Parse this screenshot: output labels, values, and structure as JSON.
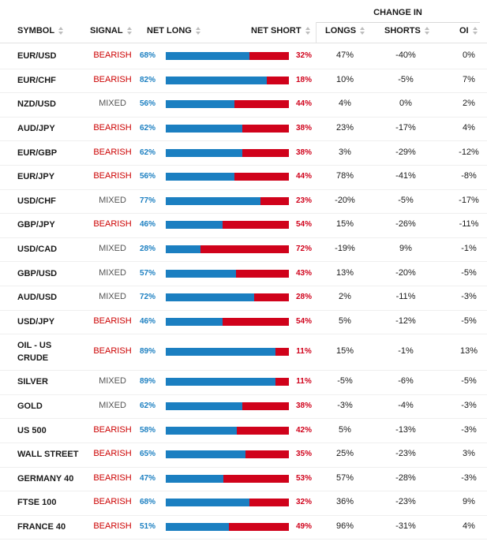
{
  "header": {
    "change_in": "CHANGE IN",
    "symbol": "SYMBOL",
    "signal": "SIGNAL",
    "net_long": "NET LONG",
    "net_short": "NET SHORT",
    "longs": "LONGS",
    "shorts": "SHORTS",
    "oi": "OI"
  },
  "colors": {
    "long": "#1b7fc1",
    "short": "#d0021b",
    "bearish": "#cc0000",
    "mixed": "#555555"
  },
  "rows": [
    {
      "symbol": "EUR/USD",
      "signal": "BEARISH",
      "net_long": "68%",
      "net_short": "32%",
      "longs": "47%",
      "shorts": "-40%",
      "oi": "0%",
      "long_pct": 68
    },
    {
      "symbol": "EUR/CHF",
      "signal": "BEARISH",
      "net_long": "82%",
      "net_short": "18%",
      "longs": "10%",
      "shorts": "-5%",
      "oi": "7%",
      "long_pct": 82
    },
    {
      "symbol": "NZD/USD",
      "signal": "MIXED",
      "net_long": "56%",
      "net_short": "44%",
      "longs": "4%",
      "shorts": "0%",
      "oi": "2%",
      "long_pct": 56
    },
    {
      "symbol": "AUD/JPY",
      "signal": "BEARISH",
      "net_long": "62%",
      "net_short": "38%",
      "longs": "23%",
      "shorts": "-17%",
      "oi": "4%",
      "long_pct": 62
    },
    {
      "symbol": "EUR/GBP",
      "signal": "BEARISH",
      "net_long": "62%",
      "net_short": "38%",
      "longs": "3%",
      "shorts": "-29%",
      "oi": "-12%",
      "long_pct": 62
    },
    {
      "symbol": "EUR/JPY",
      "signal": "BEARISH",
      "net_long": "56%",
      "net_short": "44%",
      "longs": "78%",
      "shorts": "-41%",
      "oi": "-8%",
      "long_pct": 56
    },
    {
      "symbol": "USD/CHF",
      "signal": "MIXED",
      "net_long": "77%",
      "net_short": "23%",
      "longs": "-20%",
      "shorts": "-5%",
      "oi": "-17%",
      "long_pct": 77
    },
    {
      "symbol": "GBP/JPY",
      "signal": "BEARISH",
      "net_long": "46%",
      "net_short": "54%",
      "longs": "15%",
      "shorts": "-26%",
      "oi": "-11%",
      "long_pct": 46
    },
    {
      "symbol": "USD/CAD",
      "signal": "MIXED",
      "net_long": "28%",
      "net_short": "72%",
      "longs": "-19%",
      "shorts": "9%",
      "oi": "-1%",
      "long_pct": 28
    },
    {
      "symbol": "GBP/USD",
      "signal": "MIXED",
      "net_long": "57%",
      "net_short": "43%",
      "longs": "13%",
      "shorts": "-20%",
      "oi": "-5%",
      "long_pct": 57
    },
    {
      "symbol": "AUD/USD",
      "signal": "MIXED",
      "net_long": "72%",
      "net_short": "28%",
      "longs": "2%",
      "shorts": "-11%",
      "oi": "-3%",
      "long_pct": 72
    },
    {
      "symbol": "USD/JPY",
      "signal": "BEARISH",
      "net_long": "46%",
      "net_short": "54%",
      "longs": "5%",
      "shorts": "-12%",
      "oi": "-5%",
      "long_pct": 46
    },
    {
      "symbol": "OIL - US CRUDE",
      "signal": "BEARISH",
      "net_long": "89%",
      "net_short": "11%",
      "longs": "15%",
      "shorts": "-1%",
      "oi": "13%",
      "long_pct": 89
    },
    {
      "symbol": "SILVER",
      "signal": "MIXED",
      "net_long": "89%",
      "net_short": "11%",
      "longs": "-5%",
      "shorts": "-6%",
      "oi": "-5%",
      "long_pct": 89
    },
    {
      "symbol": "GOLD",
      "signal": "MIXED",
      "net_long": "62%",
      "net_short": "38%",
      "longs": "-3%",
      "shorts": "-4%",
      "oi": "-3%",
      "long_pct": 62
    },
    {
      "symbol": "US 500",
      "signal": "BEARISH",
      "net_long": "58%",
      "net_short": "42%",
      "longs": "5%",
      "shorts": "-13%",
      "oi": "-3%",
      "long_pct": 58
    },
    {
      "symbol": "WALL STREET",
      "signal": "BEARISH",
      "net_long": "65%",
      "net_short": "35%",
      "longs": "25%",
      "shorts": "-23%",
      "oi": "3%",
      "long_pct": 65
    },
    {
      "symbol": "GERMANY 40",
      "signal": "BEARISH",
      "net_long": "47%",
      "net_short": "53%",
      "longs": "57%",
      "shorts": "-28%",
      "oi": "-3%",
      "long_pct": 47
    },
    {
      "symbol": "FTSE 100",
      "signal": "BEARISH",
      "net_long": "68%",
      "net_short": "32%",
      "longs": "36%",
      "shorts": "-23%",
      "oi": "9%",
      "long_pct": 68
    },
    {
      "symbol": "FRANCE 40",
      "signal": "BEARISH",
      "net_long": "51%",
      "net_short": "49%",
      "longs": "96%",
      "shorts": "-31%",
      "oi": "4%",
      "long_pct": 51
    }
  ]
}
